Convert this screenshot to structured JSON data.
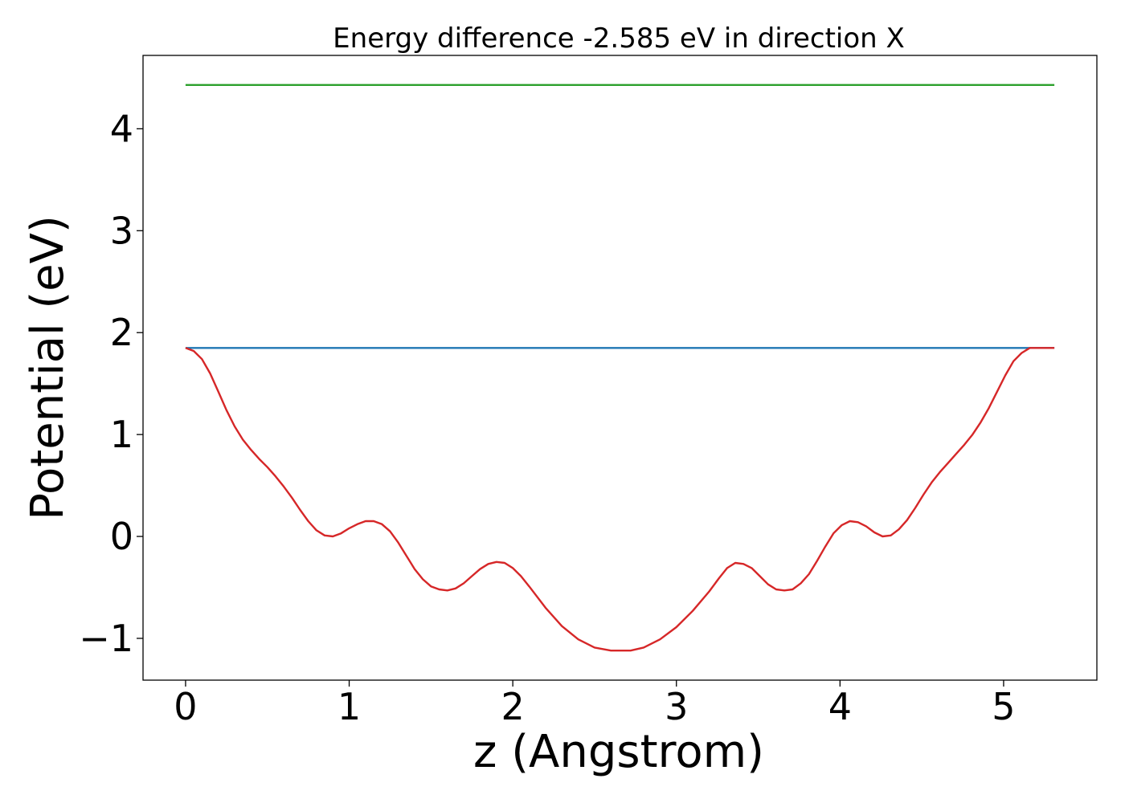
{
  "chart_data": {
    "type": "line",
    "title": "Energy difference -2.585 eV in direction X",
    "xlabel": "z (Angstrom)",
    "ylabel": "Potential (eV)",
    "xlim": [
      -0.26,
      5.57
    ],
    "ylim": [
      -1.41,
      4.72
    ],
    "xticks": [
      0,
      1,
      2,
      3,
      4,
      5
    ],
    "xtick_labels": [
      "0",
      "1",
      "2",
      "3",
      "4",
      "5"
    ],
    "yticks": [
      -1,
      0,
      1,
      2,
      3,
      4
    ],
    "ytick_labels": [
      "−1",
      "0",
      "1",
      "2",
      "3",
      "4"
    ],
    "grid": false,
    "series": [
      {
        "color": "#2ca02c",
        "x": [
          0,
          5.31
        ],
        "y": [
          4.43,
          4.43
        ]
      },
      {
        "color": "#1f77b4",
        "x": [
          0,
          5.31
        ],
        "y": [
          1.85,
          1.85
        ]
      },
      {
        "color": "#d62728",
        "x": [
          0.0,
          0.05,
          0.1,
          0.15,
          0.2,
          0.25,
          0.3,
          0.35,
          0.4,
          0.45,
          0.5,
          0.55,
          0.6,
          0.65,
          0.7,
          0.75,
          0.8,
          0.85,
          0.9,
          0.95,
          1.0,
          1.05,
          1.1,
          1.15,
          1.2,
          1.25,
          1.3,
          1.35,
          1.4,
          1.45,
          1.5,
          1.55,
          1.6,
          1.65,
          1.7,
          1.75,
          1.8,
          1.85,
          1.9,
          1.95,
          2.0,
          2.05,
          2.1,
          2.2,
          2.3,
          2.4,
          2.5,
          2.6,
          2.66,
          2.72,
          2.8,
          2.9,
          3.0,
          3.1,
          3.2,
          3.26,
          3.31,
          3.36,
          3.41,
          3.46,
          3.51,
          3.56,
          3.61,
          3.66,
          3.71,
          3.76,
          3.81,
          3.86,
          3.91,
          3.96,
          4.01,
          4.06,
          4.11,
          4.16,
          4.21,
          4.26,
          4.31,
          4.36,
          4.41,
          4.46,
          4.51,
          4.56,
          4.61,
          4.66,
          4.71,
          4.76,
          4.81,
          4.86,
          4.91,
          4.96,
          5.01,
          5.06,
          5.11,
          5.16,
          5.21,
          5.26,
          5.31
        ],
        "y": [
          1.85,
          1.82,
          1.74,
          1.6,
          1.42,
          1.24,
          1.08,
          0.95,
          0.85,
          0.76,
          0.68,
          0.59,
          0.49,
          0.38,
          0.26,
          0.15,
          0.06,
          0.01,
          0.0,
          0.03,
          0.08,
          0.12,
          0.15,
          0.15,
          0.12,
          0.05,
          -0.06,
          -0.19,
          -0.32,
          -0.42,
          -0.49,
          -0.52,
          -0.53,
          -0.51,
          -0.46,
          -0.39,
          -0.32,
          -0.27,
          -0.25,
          -0.26,
          -0.31,
          -0.39,
          -0.49,
          -0.7,
          -0.88,
          -1.01,
          -1.09,
          -1.12,
          -1.12,
          -1.12,
          -1.09,
          -1.01,
          -0.89,
          -0.73,
          -0.54,
          -0.41,
          -0.31,
          -0.26,
          -0.27,
          -0.31,
          -0.39,
          -0.47,
          -0.52,
          -0.53,
          -0.52,
          -0.46,
          -0.37,
          -0.24,
          -0.1,
          0.03,
          0.11,
          0.15,
          0.14,
          0.1,
          0.04,
          0.0,
          0.01,
          0.07,
          0.16,
          0.28,
          0.41,
          0.53,
          0.63,
          0.72,
          0.81,
          0.9,
          1.0,
          1.12,
          1.26,
          1.42,
          1.58,
          1.72,
          1.8,
          1.85,
          1.85,
          1.85,
          1.85
        ]
      }
    ]
  }
}
